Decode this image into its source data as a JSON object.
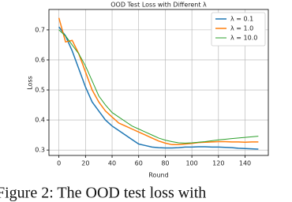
{
  "chart_data": {
    "type": "line",
    "title": "OOD Test Loss with Different λ",
    "x_label": "Round",
    "y_label": "Loss",
    "x": [
      0,
      5,
      10,
      15,
      20,
      25,
      30,
      35,
      40,
      45,
      50,
      55,
      60,
      65,
      70,
      75,
      80,
      85,
      90,
      95,
      100,
      105,
      110,
      115,
      120,
      125,
      130,
      135,
      140,
      145,
      150
    ],
    "series": [
      {
        "name": "λ = 0.1",
        "color": "#1f77b4",
        "values": [
          0.71,
          0.68,
          0.63,
          0.57,
          0.51,
          0.46,
          0.43,
          0.4,
          0.38,
          0.365,
          0.35,
          0.335,
          0.32,
          0.315,
          0.31,
          0.308,
          0.307,
          0.307,
          0.308,
          0.31,
          0.31,
          0.311,
          0.311,
          0.31,
          0.31,
          0.309,
          0.308,
          0.306,
          0.305,
          0.304,
          0.303
        ]
      },
      {
        "name": "λ = 1.0",
        "color": "#ff7f0e",
        "values": [
          0.74,
          0.66,
          0.665,
          0.62,
          0.56,
          0.5,
          0.46,
          0.43,
          0.41,
          0.39,
          0.38,
          0.37,
          0.36,
          0.35,
          0.34,
          0.33,
          0.323,
          0.318,
          0.318,
          0.32,
          0.322,
          0.325,
          0.326,
          0.327,
          0.328,
          0.328,
          0.327,
          0.327,
          0.326,
          0.327,
          0.327
        ]
      },
      {
        "name": "λ = 10.0",
        "color": "#2ca02c",
        "values": [
          0.7,
          0.68,
          0.65,
          0.62,
          0.58,
          0.53,
          0.48,
          0.45,
          0.425,
          0.41,
          0.395,
          0.38,
          0.37,
          0.36,
          0.35,
          0.34,
          0.333,
          0.328,
          0.324,
          0.323,
          0.324,
          0.326,
          0.328,
          0.331,
          0.334,
          0.336,
          0.338,
          0.34,
          0.342,
          0.344,
          0.346
        ]
      }
    ],
    "xlim": [
      -7.5,
      157.5
    ],
    "ylim": [
      0.282,
      0.768
    ],
    "xticks": [
      0,
      20,
      40,
      60,
      80,
      100,
      120,
      140
    ],
    "yticks": [
      0.3,
      0.4,
      0.5,
      0.6,
      0.7
    ],
    "grid": true,
    "legend": "upper right"
  },
  "caption": "Figure 2: The OOD test loss with"
}
